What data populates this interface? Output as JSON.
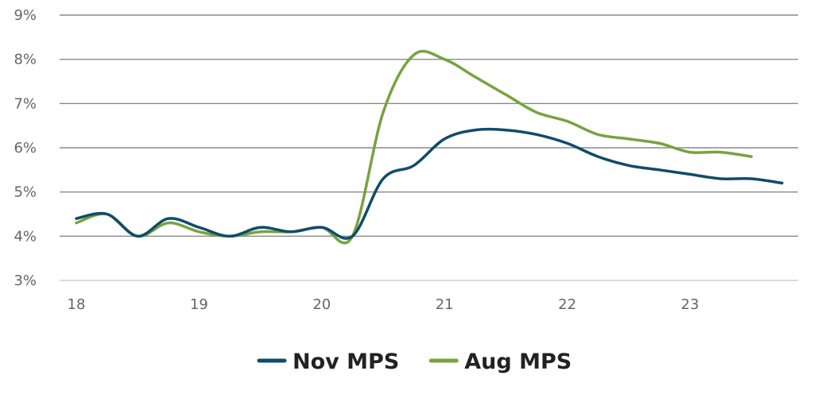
{
  "chart_data": {
    "type": "line",
    "title": "",
    "xlabel": "",
    "ylabel": "",
    "xlim": [
      18,
      23.9
    ],
    "ylim": [
      3,
      9
    ],
    "xticks": [
      18,
      19,
      20,
      21,
      22,
      23
    ],
    "xtick_labels": [
      "18",
      "19",
      "20",
      "21",
      "22",
      "23"
    ],
    "yticks": [
      3,
      4,
      5,
      6,
      7,
      8,
      9
    ],
    "ytick_labels": [
      "3%",
      "4%",
      "5%",
      "6%",
      "7%",
      "8%",
      "9%"
    ],
    "grid": "horizontal",
    "legend_placement": "bottom-center",
    "series": [
      {
        "name": "Nov MPS",
        "color": "#0f4c6b",
        "x": [
          18.0,
          18.25,
          18.5,
          18.75,
          19.0,
          19.25,
          19.5,
          19.75,
          20.0,
          20.25,
          20.5,
          20.75,
          21.0,
          21.25,
          21.5,
          21.75,
          22.0,
          22.25,
          22.5,
          22.75,
          23.0,
          23.25,
          23.5,
          23.75
        ],
        "y": [
          4.4,
          4.5,
          4.0,
          4.4,
          4.2,
          4.0,
          4.2,
          4.1,
          4.2,
          4.0,
          5.3,
          5.6,
          6.2,
          6.4,
          6.4,
          6.3,
          6.1,
          5.8,
          5.6,
          5.5,
          5.4,
          5.3,
          5.3,
          5.2
        ]
      },
      {
        "name": "Aug MPS",
        "color": "#77a33f",
        "x": [
          18.0,
          18.25,
          18.5,
          18.75,
          19.0,
          19.25,
          19.5,
          19.75,
          20.0,
          20.25,
          20.5,
          20.75,
          21.0,
          21.25,
          21.5,
          21.75,
          22.0,
          22.25,
          22.5,
          22.75,
          23.0,
          23.25,
          23.5
        ],
        "y": [
          4.3,
          4.5,
          4.0,
          4.3,
          4.1,
          4.0,
          4.1,
          4.1,
          4.2,
          4.0,
          6.8,
          8.1,
          8.0,
          7.6,
          7.2,
          6.8,
          6.6,
          6.3,
          6.2,
          6.1,
          5.9,
          5.9,
          5.8
        ]
      }
    ]
  }
}
